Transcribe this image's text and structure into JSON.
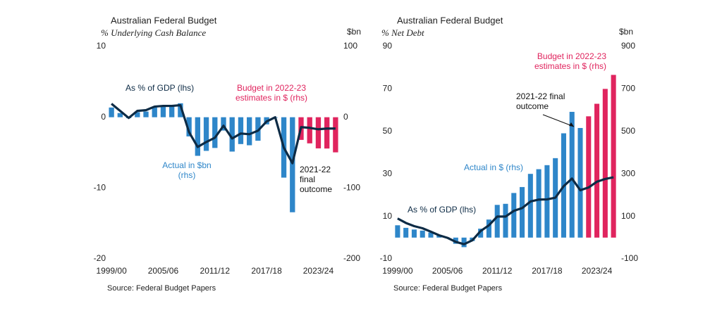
{
  "chart_data": [
    {
      "type": "bar",
      "title": "Australian Federal Budget",
      "y_label": "% Underlying Cash Balance",
      "y2_label": "$bn",
      "source": "Source: Federal Budget Papers",
      "categories": [
        "1999/00",
        null,
        null,
        null,
        null,
        null,
        "2005/06",
        null,
        null,
        null,
        null,
        null,
        "2011/12",
        null,
        null,
        null,
        null,
        null,
        "2017/18",
        null,
        null,
        null,
        null,
        null,
        "2023/24",
        null,
        null
      ],
      "series": [
        {
          "name": "Actual in $bn (rhs)",
          "kind": "bar",
          "axis": "y2",
          "color": "#2e86c9",
          "values": [
            13.7,
            5.9,
            -1.3,
            7.2,
            8.0,
            13.6,
            15.8,
            17.2,
            19.7,
            -27.1,
            -54.5,
            -47.5,
            -43.4,
            -18.8,
            -48.5,
            -37.9,
            -39.6,
            -33.2,
            -10.1,
            -0.7,
            -85.3,
            -134.2,
            null,
            null,
            null,
            null,
            null
          ]
        },
        {
          "name": "Budget in 2022-23 estimates in $ (rhs)",
          "kind": "bar",
          "axis": "y2",
          "color": "#e0245e",
          "values": [
            null,
            null,
            null,
            null,
            null,
            null,
            null,
            null,
            null,
            null,
            null,
            null,
            null,
            null,
            null,
            null,
            null,
            null,
            null,
            null,
            null,
            null,
            -32.0,
            -36.9,
            -44.0,
            -44.2,
            -49.6
          ]
        },
        {
          "name": "As % of GDP (lhs)",
          "kind": "line",
          "axis": "y",
          "color": "#0d2b45",
          "values": [
            1.9,
            0.9,
            -0.1,
            0.9,
            1.0,
            1.5,
            1.6,
            1.6,
            1.7,
            -2.1,
            -4.2,
            -3.5,
            -2.9,
            -1.2,
            -3.0,
            -2.3,
            -2.4,
            -1.9,
            -0.6,
            0.0,
            -4.3,
            -6.5,
            -1.4,
            -1.5,
            -1.7,
            -1.6,
            -1.6
          ]
        }
      ],
      "annotations": [
        "2021-22 final outcome"
      ],
      "ylim": [
        -20,
        10
      ],
      "yticks": [
        -20,
        -10,
        0,
        10
      ],
      "y2lim": [
        -200,
        100
      ],
      "y2ticks": [
        -200,
        -100,
        0,
        100
      ]
    },
    {
      "type": "bar",
      "title": "Australian Federal Budget",
      "y_label": "% Net Debt",
      "y2_label": "$bn",
      "source": "Source: Federal Budget Papers",
      "categories": [
        "1999/00",
        null,
        null,
        null,
        null,
        null,
        "2005/06",
        null,
        null,
        null,
        null,
        null,
        "2011/12",
        null,
        null,
        null,
        null,
        null,
        "2017/18",
        null,
        null,
        null,
        null,
        null,
        "2023/24",
        null,
        null
      ],
      "series": [
        {
          "name": "Actual in $ (rhs)",
          "kind": "bar",
          "axis": "y2",
          "color": "#2e86c9",
          "values": [
            58,
            46,
            38,
            33,
            24,
            10,
            -1,
            -29,
            -45,
            -16,
            42,
            85,
            154,
            159,
            210,
            238,
            300,
            322,
            341,
            374,
            491,
            592,
            516,
            null,
            null,
            null,
            null
          ]
        },
        {
          "name": "Budget in 2022-23 estimates in $ (rhs)",
          "kind": "bar",
          "axis": "y2",
          "color": "#e0245e",
          "values": [
            null,
            null,
            null,
            null,
            null,
            null,
            null,
            null,
            null,
            null,
            null,
            null,
            null,
            null,
            null,
            null,
            null,
            null,
            null,
            null,
            null,
            null,
            null,
            571,
            630,
            700,
            766
          ]
        },
        {
          "name": "As % of GDP (lhs)",
          "kind": "line",
          "axis": "y",
          "color": "#0d2b45",
          "values": [
            9.0,
            6.9,
            5.4,
            4.4,
            2.8,
            1.1,
            -0.1,
            -2.0,
            -3.1,
            -1.3,
            3.1,
            5.8,
            9.9,
            9.9,
            12.6,
            13.9,
            17.0,
            17.9,
            18.0,
            18.8,
            24.2,
            27.8,
            22.3,
            23.6,
            26.3,
            27.6,
            28.4
          ]
        }
      ],
      "annotations": [
        "2021-22 final outcome"
      ],
      "ylim": [
        -10,
        90
      ],
      "yticks": [
        -10,
        10,
        30,
        50,
        70,
        90
      ],
      "y2lim": [
        -100,
        900
      ],
      "y2ticks": [
        -100,
        100,
        300,
        500,
        700,
        900
      ]
    }
  ]
}
